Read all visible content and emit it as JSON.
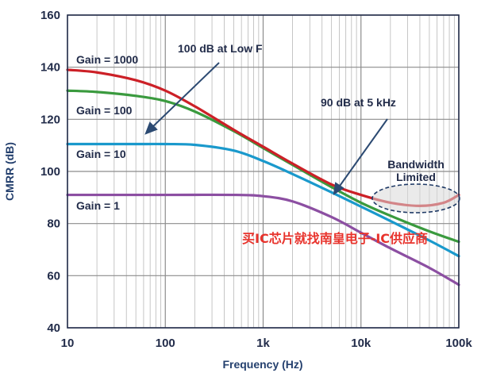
{
  "chart_data": {
    "type": "line",
    "xlabel": "Frequency (Hz)",
    "ylabel": "CMRR (dB)",
    "x_scale": "log",
    "xlim": [
      10,
      100000
    ],
    "ylim": [
      40,
      160
    ],
    "grid": true,
    "x_ticks": [
      {
        "value": 10,
        "label": "10"
      },
      {
        "value": 100,
        "label": "100"
      },
      {
        "value": 1000,
        "label": "1k"
      },
      {
        "value": 10000,
        "label": "10k"
      },
      {
        "value": 100000,
        "label": "100k"
      }
    ],
    "y_ticks": [
      40,
      60,
      80,
      100,
      120,
      140,
      160
    ],
    "series": [
      {
        "name": "Gain = 1000",
        "color": "#cc2027",
        "x": [
          10,
          20,
          50,
          100,
          200,
          500,
          1000,
          2000,
          5000,
          10000,
          20000,
          40000,
          70000,
          100000
        ],
        "y": [
          139,
          138,
          135,
          131,
          125,
          116,
          109.5,
          103,
          95,
          91,
          88,
          86.8,
          88,
          91
        ]
      },
      {
        "name": "Gain = 100",
        "color": "#3a9a3e",
        "x": [
          10,
          20,
          50,
          100,
          200,
          500,
          1000,
          2000,
          5000,
          10000,
          20000,
          50000,
          100000
        ],
        "y": [
          131,
          130.5,
          129,
          127,
          123,
          115.5,
          109,
          102.5,
          94,
          88,
          83,
          77,
          73
        ]
      },
      {
        "name": "Gain = 10",
        "color": "#1a99cc",
        "x": [
          10,
          20,
          50,
          100,
          200,
          500,
          1000,
          2000,
          5000,
          10000,
          20000,
          50000,
          100000
        ],
        "y": [
          110.5,
          110.5,
          110.5,
          110.5,
          110.2,
          108,
          104,
          99,
          92,
          86.5,
          81,
          73.5,
          67.5
        ]
      },
      {
        "name": "Gain = 1",
        "color": "#8c4fa2",
        "x": [
          10,
          100,
          500,
          1000,
          2000,
          5000,
          10000,
          20000,
          50000,
          100000
        ],
        "y": [
          91,
          91,
          91,
          90.5,
          88.5,
          82.5,
          76.5,
          70.5,
          63,
          56.5
        ]
      }
    ],
    "annotations": [
      {
        "text": "100 dB at Low F"
      },
      {
        "text": "90 dB at 5 kHz"
      },
      {
        "text": "Bandwidth"
      },
      {
        "text": "Limited"
      }
    ]
  },
  "watermark_text": "买IC芯片就找南皇电子-IC供应商"
}
